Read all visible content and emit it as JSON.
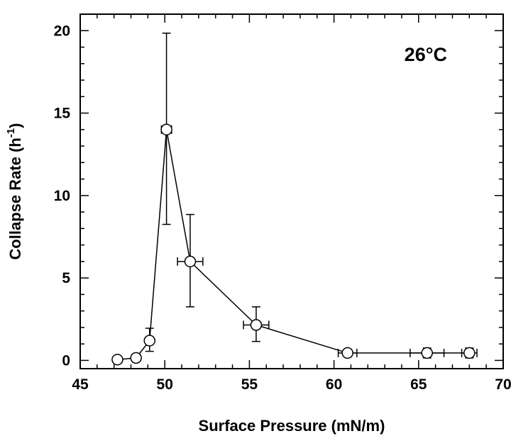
{
  "chart_data": {
    "type": "scatter",
    "title": "",
    "xlabel": "Surface Pressure (mN/m)",
    "ylabel": "Collapse Rate (h",
    "ylabel_superscript": "-1",
    "ylabel_close": ")",
    "annotation": "26°C",
    "xlim": [
      45,
      70
    ],
    "ylim": [
      -0.5,
      21
    ],
    "x_ticks": [
      45,
      50,
      55,
      60,
      65,
      70
    ],
    "y_ticks": [
      0,
      5,
      10,
      15,
      20
    ],
    "x_tick_labels": [
      "45",
      "50",
      "55",
      "60",
      "65",
      "70"
    ],
    "y_tick_labels": [
      "0",
      "5",
      "10",
      "15",
      "20"
    ],
    "grid": false,
    "connected": true,
    "marker": "open-circle",
    "points": [
      {
        "x": 47.2,
        "y": 0.05,
        "yerr": [
          0,
          0
        ],
        "xerr": [
          0,
          0
        ]
      },
      {
        "x": 48.3,
        "y": 0.15,
        "yerr": [
          0,
          0
        ],
        "xerr": [
          0,
          0
        ]
      },
      {
        "x": 49.1,
        "y": 1.2,
        "yerr": [
          0.65,
          0.75
        ],
        "xerr": [
          0,
          0
        ]
      },
      {
        "x": 50.1,
        "y": 14.0,
        "yerr": [
          5.75,
          5.85
        ],
        "xerr": [
          0.3,
          0.3
        ]
      },
      {
        "x": 51.5,
        "y": 6.0,
        "yerr": [
          2.75,
          2.85
        ],
        "xerr": [
          0.75,
          0.75
        ]
      },
      {
        "x": 55.4,
        "y": 2.15,
        "yerr": [
          1.0,
          1.1
        ],
        "xerr": [
          0.75,
          0.75
        ]
      },
      {
        "x": 60.8,
        "y": 0.45,
        "yerr": [
          0,
          0
        ],
        "xerr": [
          0.55,
          0.55
        ]
      },
      {
        "x": 65.5,
        "y": 0.45,
        "yerr": [
          0.3,
          0.3
        ],
        "xerr": [
          1.0,
          1.0
        ]
      },
      {
        "x": 68.0,
        "y": 0.45,
        "yerr": [
          0.3,
          0.3
        ],
        "xerr": [
          0.45,
          0.45
        ]
      }
    ]
  }
}
